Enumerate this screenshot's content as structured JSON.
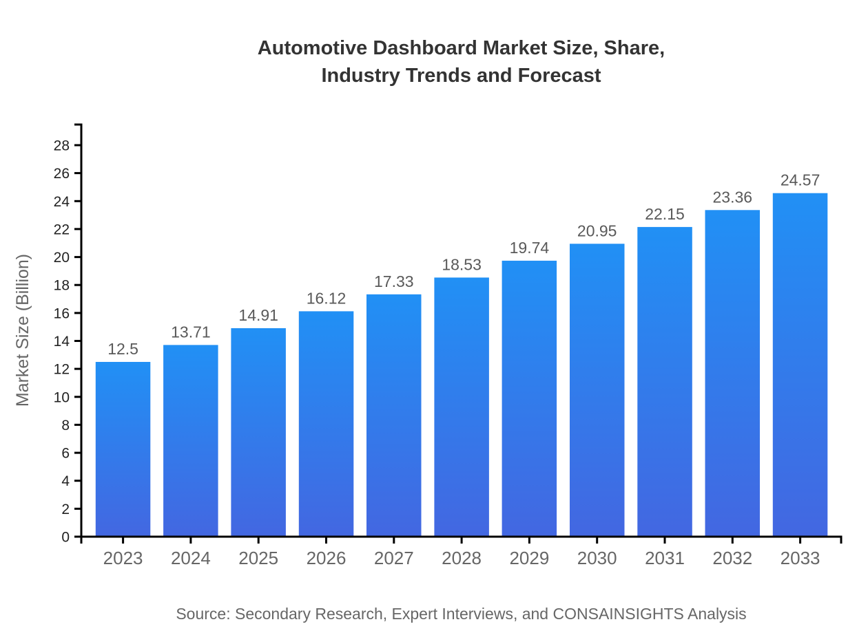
{
  "title": {
    "lines": [
      "Automotive Dashboard Market Size, Share,",
      "Industry Trends and Forecast"
    ]
  },
  "source_note": "Source: Secondary Research, Expert Interviews, and CONSAINSIGHTS Analysis",
  "chart_data": {
    "type": "bar",
    "title": "Automotive Dashboard Market Size, Share, Industry Trends and Forecast",
    "categories": [
      "2023",
      "2024",
      "2025",
      "2026",
      "2027",
      "2028",
      "2029",
      "2030",
      "2031",
      "2032",
      "2033"
    ],
    "values": [
      12.5,
      13.71,
      14.91,
      16.12,
      17.33,
      18.53,
      19.74,
      20.95,
      22.15,
      23.36,
      24.57
    ],
    "value_labels": [
      "12.5",
      "13.71",
      "14.91",
      "16.12",
      "17.33",
      "18.53",
      "19.74",
      "20.95",
      "22.15",
      "23.36",
      "24.57"
    ],
    "xlabel": "",
    "ylabel": "Market Size (Billion)",
    "ylim": [
      0,
      29.5
    ],
    "yticks": [
      0,
      2,
      4,
      6,
      8,
      10,
      12,
      14,
      16,
      18,
      20,
      22,
      24,
      26,
      28
    ],
    "grid": false,
    "legend": null,
    "colors": {
      "bar_gradient_top": "#2190f5",
      "bar_gradient_bottom": "#4367e1",
      "axis": "#000000",
      "y_tick_label": "#222222",
      "x_tick_label": "#666666",
      "value_label": "#595959"
    }
  }
}
